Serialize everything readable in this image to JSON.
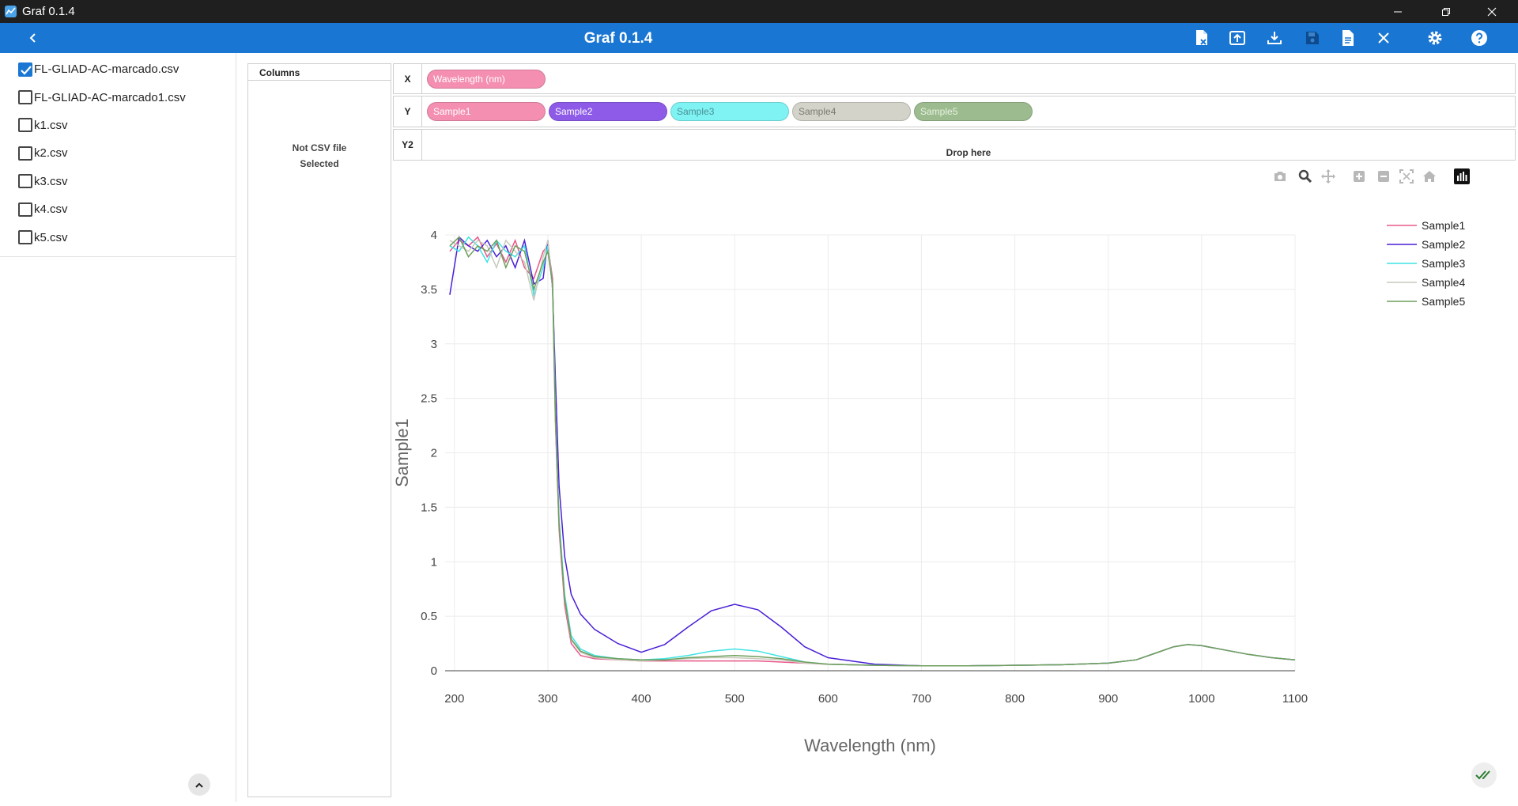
{
  "window": {
    "title": "Graf 0.1.4"
  },
  "appbar": {
    "title": "Graf 0.1.4"
  },
  "sidebar": {
    "files": [
      {
        "name": "FL-GLIAD-AC-marcado.csv",
        "checked": true
      },
      {
        "name": "FL-GLIAD-AC-marcado1.csv",
        "checked": false
      },
      {
        "name": "k1.csv",
        "checked": false
      },
      {
        "name": "k2.csv",
        "checked": false
      },
      {
        "name": "k3.csv",
        "checked": false
      },
      {
        "name": "k4.csv",
        "checked": false
      },
      {
        "name": "k5.csv",
        "checked": false
      }
    ]
  },
  "columns_panel": {
    "header": "Columns",
    "empty_line1": "Not CSV file",
    "empty_line2": "Selected"
  },
  "axes": {
    "x": {
      "label": "X",
      "chips": [
        {
          "name": "Wavelength (nm)",
          "color": "#f48fb1",
          "text_color": "#ffffff"
        }
      ]
    },
    "y": {
      "label": "Y",
      "chips": [
        {
          "name": "Sample1",
          "color": "#f48fb1",
          "text_color": "#ffffff"
        },
        {
          "name": "Sample2",
          "color": "#8e5be8",
          "text_color": "#ffffff"
        },
        {
          "name": "Sample3",
          "color": "#7ff3f3",
          "text_color": "#4a8f96"
        },
        {
          "name": "Sample4",
          "color": "#d3d3c9",
          "text_color": "#7a7a70"
        },
        {
          "name": "Sample5",
          "color": "#9cbc8f",
          "text_color": "#e8f2e2"
        }
      ]
    },
    "y2": {
      "label": "Y2",
      "drop_text": "Drop here"
    }
  },
  "modebar_icons": [
    "camera-icon",
    "zoom-icon",
    "pan-icon",
    "zoom-in-icon",
    "zoom-out-icon",
    "autoscale-icon",
    "reset-axes-icon",
    "plotly-logo-icon"
  ],
  "chart_data": {
    "type": "line",
    "xlabel": "Wavelength (nm)",
    "ylabel": "Sample1",
    "xlim": [
      190,
      1100
    ],
    "ylim": [
      0,
      4
    ],
    "x_ticks": [
      200,
      300,
      400,
      500,
      600,
      700,
      800,
      900,
      1000,
      1100
    ],
    "y_ticks": [
      0,
      0.5,
      1,
      1.5,
      2,
      2.5,
      3,
      3.5,
      4
    ],
    "y_tick_labels": [
      "0",
      "0.5",
      "1",
      "1.5",
      "2",
      "2.5",
      "3",
      "3.5",
      "4"
    ],
    "grid": true,
    "legend": "top-right",
    "x": [
      195,
      205,
      215,
      225,
      235,
      245,
      255,
      265,
      275,
      285,
      295,
      300,
      305,
      308,
      312,
      318,
      325,
      335,
      350,
      375,
      400,
      425,
      450,
      475,
      500,
      525,
      550,
      575,
      600,
      650,
      700,
      750,
      800,
      850,
      900,
      930,
      950,
      970,
      985,
      1000,
      1025,
      1050,
      1075,
      1100
    ],
    "series": [
      {
        "name": "Sample1",
        "color": "#e8588a",
        "values": [
          3.85,
          3.95,
          3.9,
          3.98,
          3.8,
          3.92,
          3.75,
          3.95,
          3.7,
          3.6,
          3.85,
          3.9,
          3.6,
          2.3,
          1.3,
          0.6,
          0.25,
          0.14,
          0.11,
          0.1,
          0.09,
          0.09,
          0.09,
          0.09,
          0.09,
          0.09,
          0.08,
          0.07,
          0.06,
          0.05,
          0.045,
          0.045,
          0.05,
          0.055,
          0.07,
          0.1,
          0.16,
          0.22,
          0.24,
          0.23,
          0.19,
          0.15,
          0.12,
          0.1
        ]
      },
      {
        "name": "Sample2",
        "color": "#4a1fd6",
        "values": [
          3.45,
          3.98,
          3.9,
          3.85,
          3.95,
          3.8,
          3.9,
          3.7,
          3.95,
          3.55,
          3.6,
          3.95,
          3.5,
          2.7,
          1.7,
          1.05,
          0.7,
          0.52,
          0.38,
          0.25,
          0.17,
          0.24,
          0.4,
          0.55,
          0.61,
          0.56,
          0.4,
          0.22,
          0.12,
          0.06,
          0.045,
          0.045,
          0.05,
          0.055,
          0.07,
          0.1,
          0.16,
          0.22,
          0.24,
          0.23,
          0.19,
          0.15,
          0.12,
          0.1
        ]
      },
      {
        "name": "Sample3",
        "color": "#3fe3e3",
        "values": [
          3.9,
          3.85,
          3.98,
          3.9,
          3.75,
          3.95,
          3.85,
          3.8,
          3.9,
          3.45,
          3.7,
          3.9,
          3.55,
          2.4,
          1.4,
          0.7,
          0.32,
          0.2,
          0.14,
          0.11,
          0.1,
          0.11,
          0.14,
          0.18,
          0.2,
          0.18,
          0.13,
          0.08,
          0.06,
          0.05,
          0.045,
          0.045,
          0.05,
          0.055,
          0.07,
          0.1,
          0.16,
          0.22,
          0.24,
          0.23,
          0.19,
          0.15,
          0.12,
          0.1
        ]
      },
      {
        "name": "Sample4",
        "color": "#c9c9bd",
        "values": [
          3.95,
          3.9,
          3.85,
          3.95,
          3.9,
          3.7,
          3.95,
          3.85,
          3.75,
          3.4,
          3.8,
          3.95,
          3.5,
          2.35,
          1.35,
          0.65,
          0.28,
          0.17,
          0.12,
          0.1,
          0.09,
          0.1,
          0.11,
          0.12,
          0.12,
          0.11,
          0.1,
          0.07,
          0.06,
          0.05,
          0.045,
          0.045,
          0.05,
          0.055,
          0.07,
          0.1,
          0.16,
          0.22,
          0.24,
          0.23,
          0.19,
          0.15,
          0.12,
          0.1
        ]
      },
      {
        "name": "Sample5",
        "color": "#6e9e5c",
        "values": [
          3.9,
          3.98,
          3.8,
          3.9,
          3.85,
          3.95,
          3.7,
          3.9,
          3.85,
          3.5,
          3.75,
          3.85,
          3.55,
          2.35,
          1.35,
          0.66,
          0.29,
          0.18,
          0.13,
          0.11,
          0.1,
          0.1,
          0.12,
          0.13,
          0.14,
          0.13,
          0.11,
          0.08,
          0.06,
          0.05,
          0.045,
          0.045,
          0.05,
          0.055,
          0.07,
          0.1,
          0.16,
          0.22,
          0.24,
          0.23,
          0.19,
          0.15,
          0.12,
          0.1
        ]
      }
    ]
  }
}
